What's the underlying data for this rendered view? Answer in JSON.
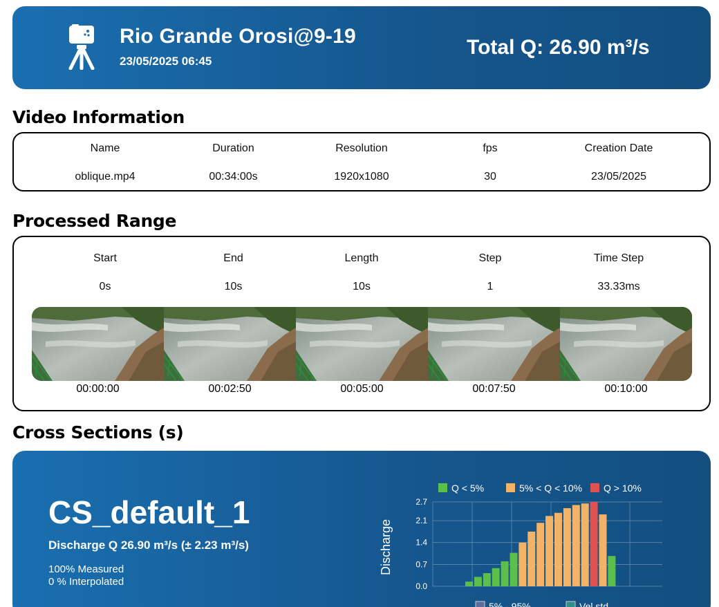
{
  "header": {
    "title": "Rio Grande Orosi@9-19",
    "datetime": "23/05/2025 06:45",
    "total_q": "Total Q: 26.90 m³/s",
    "icon": "camera-tripod-icon"
  },
  "video_info": {
    "heading": "Video Information",
    "columns": [
      "Name",
      "Duration",
      "Resolution",
      "fps",
      "Creation Date"
    ],
    "values": [
      "oblique.mp4",
      "00:34:00s",
      "1920x1080",
      "30",
      "23/05/2025"
    ]
  },
  "processed_range": {
    "heading": "Processed Range",
    "columns": [
      "Start",
      "End",
      "Length",
      "Step",
      "Time Step"
    ],
    "values": [
      "0s",
      "10s",
      "10s",
      "1",
      "33.33ms"
    ],
    "frame_times": [
      "00:00:00",
      "00:02:50",
      "00:05:00",
      "00:07:50",
      "00:10:00"
    ]
  },
  "cross_sections": {
    "heading": "Cross Sections (s)",
    "name": "CS_default_1",
    "discharge": "Discharge Q 26.90 m³/s (± 2.23 m³/s)",
    "measured": "100% Measured",
    "interpolated": "0 % Interpolated"
  },
  "chart_data": {
    "type": "bar",
    "ylabel": "Discharge",
    "yticks": [
      "0.0",
      "0.7",
      "1.4",
      "2.1",
      "2.7"
    ],
    "ylim": [
      0,
      2.7
    ],
    "grid": true,
    "legend": [
      {
        "label": "Q < 5%",
        "color": "#5cbf4a"
      },
      {
        "label": "5% < Q < 10%",
        "color": "#f2b366"
      },
      {
        "label": "Q > 10%",
        "color": "#e05252"
      }
    ],
    "legend_bottom": [
      "5% - 95%",
      "Vel std"
    ],
    "values": [
      0.15,
      0.3,
      0.42,
      0.58,
      0.8,
      1.07,
      1.4,
      1.75,
      2.03,
      2.25,
      2.35,
      2.5,
      2.6,
      2.65,
      2.7,
      2.3,
      0.97
    ],
    "categories_color": [
      "green",
      "green",
      "green",
      "green",
      "green",
      "green",
      "orange",
      "orange",
      "orange",
      "orange",
      "orange",
      "orange",
      "orange",
      "orange",
      "red",
      "orange",
      "green"
    ]
  }
}
